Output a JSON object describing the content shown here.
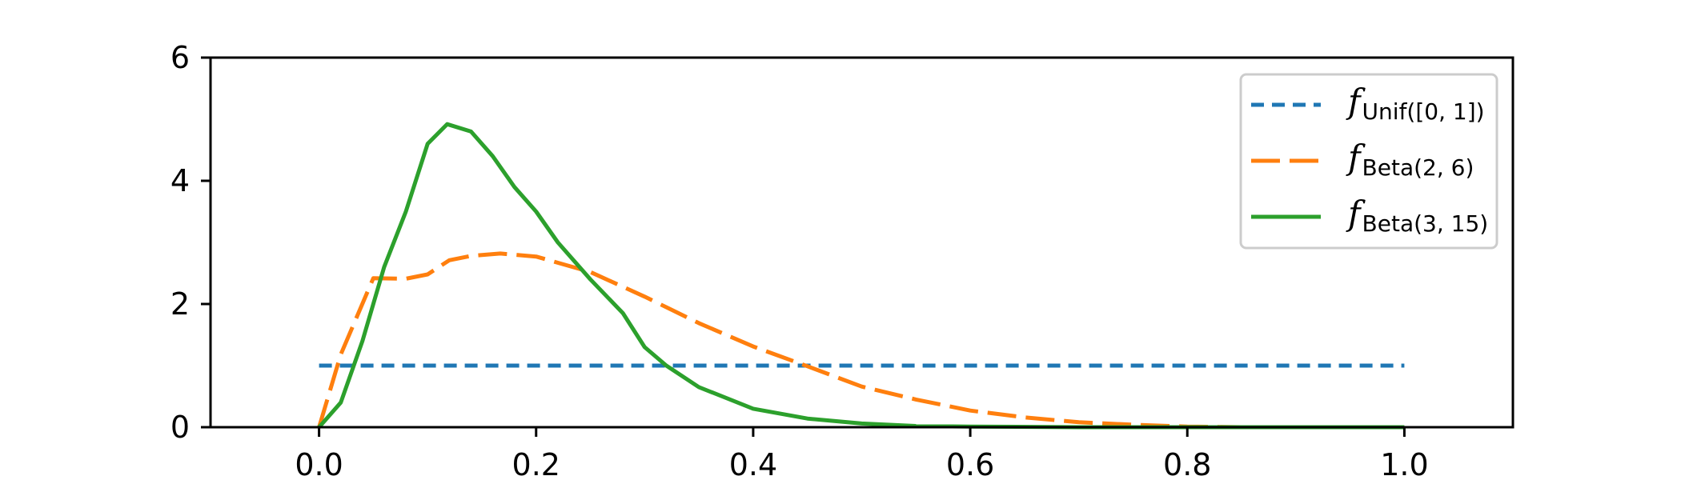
{
  "chart_data": {
    "type": "line",
    "title": "",
    "xlabel": "",
    "ylabel": "",
    "xlim": [
      -0.1,
      1.1
    ],
    "ylim": [
      0,
      6
    ],
    "xticks": [
      "0.0",
      "0.2",
      "0.4",
      "0.6",
      "0.8",
      "1.0"
    ],
    "xtick_values": [
      0.0,
      0.2,
      0.4,
      0.6,
      0.8,
      1.0
    ],
    "yticks": [
      "0",
      "2",
      "4",
      "6"
    ],
    "ytick_values": [
      0,
      2,
      4,
      6
    ],
    "grid": false,
    "legend_position": "top-right",
    "series": [
      {
        "key": "unif",
        "legend_main": "f",
        "legend_sub": "Unif([0, 1])",
        "color": "#1f77b4",
        "style": "dashed",
        "x": [
          0.0,
          1.0
        ],
        "y": [
          1.0,
          1.0
        ]
      },
      {
        "key": "beta26",
        "legend_main": "f",
        "legend_sub": "Beta(2, 6)",
        "color": "#ff7f0e",
        "style": "long-dashed",
        "x": [
          0.0,
          0.02,
          0.05,
          0.08,
          0.1,
          0.12,
          0.14,
          0.167,
          0.2,
          0.25,
          0.3,
          0.35,
          0.4,
          0.45,
          0.5,
          0.55,
          0.6,
          0.65,
          0.7,
          0.75,
          0.8,
          0.85,
          0.9,
          0.95,
          1.0
        ],
        "y": [
          0.0,
          1.18,
          2.42,
          2.41,
          2.48,
          2.71,
          2.78,
          2.82,
          2.77,
          2.52,
          2.12,
          1.69,
          1.31,
          0.99,
          0.66,
          0.45,
          0.27,
          0.16,
          0.08,
          0.04,
          0.01,
          0.0,
          0.0,
          0.0,
          0.0
        ]
      },
      {
        "key": "beta315",
        "legend_main": "f",
        "legend_sub": "Beta(3, 15)",
        "color": "#2ca02c",
        "style": "solid",
        "x": [
          0.0,
          0.02,
          0.04,
          0.06,
          0.08,
          0.1,
          0.118,
          0.14,
          0.16,
          0.18,
          0.2,
          0.22,
          0.25,
          0.28,
          0.3,
          0.32,
          0.35,
          0.4,
          0.45,
          0.5,
          0.55,
          0.6,
          0.7,
          0.8,
          0.9,
          1.0
        ],
        "y": [
          0.0,
          0.4,
          1.4,
          2.6,
          3.5,
          4.6,
          4.92,
          4.8,
          4.4,
          3.9,
          3.5,
          3.0,
          2.4,
          1.85,
          1.3,
          1.0,
          0.65,
          0.3,
          0.14,
          0.06,
          0.02,
          0.01,
          0.0,
          0.0,
          0.0,
          0.0
        ]
      }
    ]
  }
}
